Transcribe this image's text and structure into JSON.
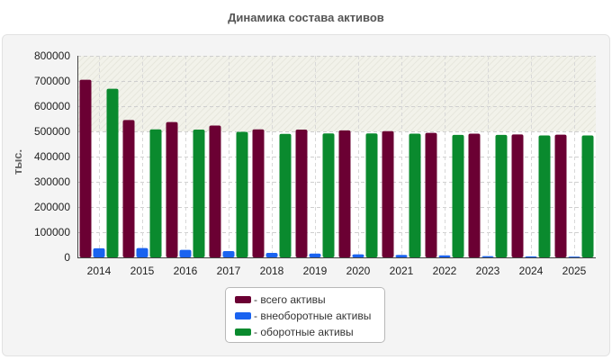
{
  "chart_data": {
    "type": "bar",
    "title": "Динамика состава активов",
    "ylabel": "тыс.",
    "xlabel": "",
    "categories": [
      "2014",
      "2015",
      "2016",
      "2017",
      "2018",
      "2019",
      "2020",
      "2021",
      "2022",
      "2023",
      "2024",
      "2025"
    ],
    "ylim": [
      0,
      800000
    ],
    "yticks": [
      "0",
      "100000",
      "200000",
      "300000",
      "400000",
      "500000",
      "600000",
      "700000",
      "800000"
    ],
    "series": [
      {
        "name": "- всего активы",
        "color": "#6b0033",
        "values": [
          705000,
          545000,
          537000,
          523000,
          508000,
          507000,
          504000,
          501000,
          494000,
          491000,
          488000,
          487000
        ]
      },
      {
        "name": "- внеоборотные активы",
        "color": "#1a63f0",
        "values": [
          36000,
          37000,
          30000,
          25000,
          18000,
          15000,
          12000,
          10000,
          8000,
          5000,
          4000,
          3000
        ]
      },
      {
        "name": "- оборотные активы",
        "color": "#0a8a2e",
        "values": [
          669000,
          508000,
          507000,
          498000,
          490000,
          492000,
          492000,
          491000,
          486000,
          486000,
          484000,
          484000
        ]
      }
    ],
    "grid": true,
    "legend_position": "bottom"
  }
}
